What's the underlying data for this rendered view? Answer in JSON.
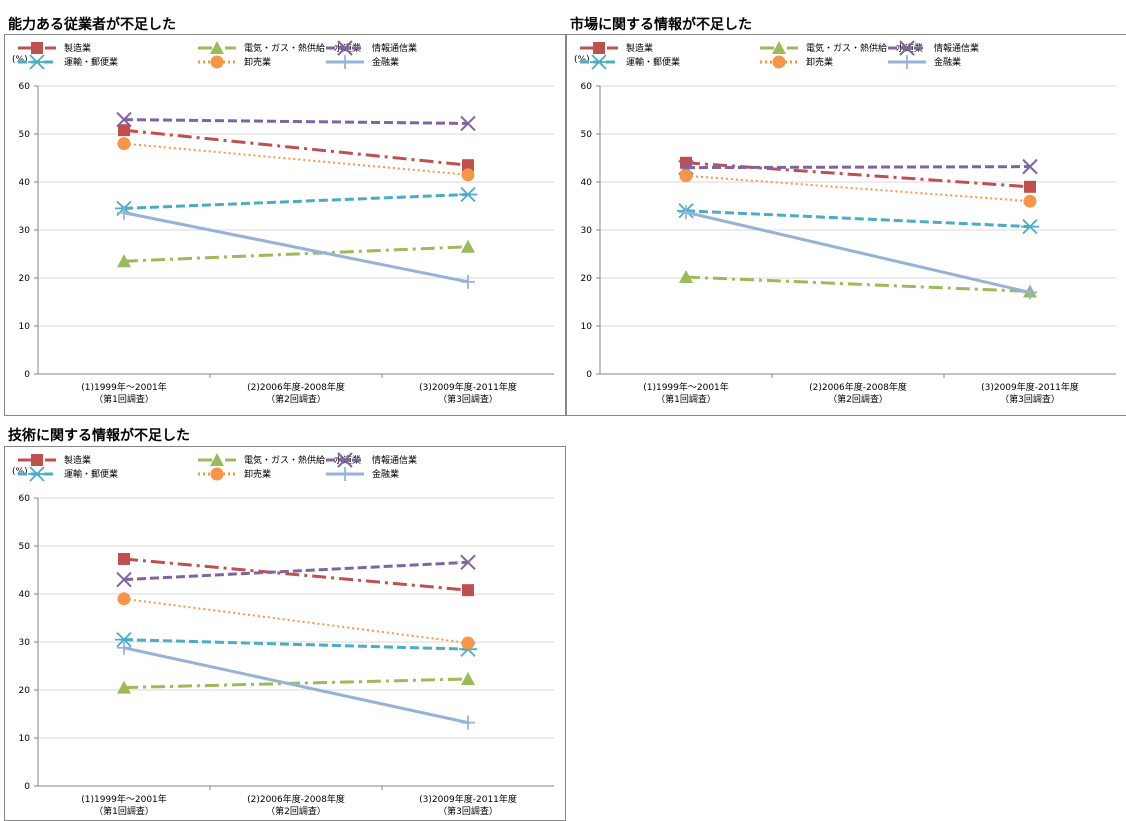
{
  "panels": [
    {
      "title": "能力ある従業者が不足した"
    },
    {
      "title": "市場に関する情報が不足した"
    },
    {
      "title": "技術に関する情報が不足した"
    }
  ],
  "colors": {
    "manufacturing": "#c0504d",
    "utilities": "#9bbb59",
    "infocomm": "#8064a2",
    "transport": "#4bacc6",
    "wholesale": "#f79646",
    "finance": "#95b3d7"
  },
  "chart_data": [
    {
      "type": "line",
      "title": "能力ある従業者が不足した",
      "ylabel": "(%)",
      "ylim": [
        0,
        60
      ],
      "yticks": [
        "0",
        "10",
        "20",
        "30",
        "40",
        "50",
        "60"
      ],
      "categories": [
        [
          "(1)1999年～2001年",
          "（第1回調査）"
        ],
        [
          "(2)2006年度-2008年度",
          "（第2回調査）"
        ],
        [
          "(3)2009年度-2011年度",
          "（第3回調査）"
        ]
      ],
      "x": [
        0,
        2
      ],
      "legend_position": "top",
      "series": [
        {
          "name": "製造業",
          "values": [
            50.8,
            43.5
          ],
          "color_key": "manufacturing",
          "marker": "square",
          "dash": "dashdot"
        },
        {
          "name": "電気・ガス・熱供給・水道業",
          "values": [
            23.5,
            26.5
          ],
          "color_key": "utilities",
          "marker": "triangle",
          "dash": "dashdot"
        },
        {
          "name": "情報通信業",
          "values": [
            53,
            52.2
          ],
          "color_key": "infocomm",
          "marker": "x",
          "dash": "dash"
        },
        {
          "name": "運輸・郵便業",
          "values": [
            34.5,
            37.4
          ],
          "color_key": "transport",
          "marker": "asterisk",
          "dash": "dash"
        },
        {
          "name": "卸売業",
          "values": [
            48,
            41.5
          ],
          "color_key": "wholesale",
          "marker": "circle",
          "dash": "dot"
        },
        {
          "name": "金融業",
          "values": [
            33.6,
            19.2
          ],
          "color_key": "finance",
          "marker": "plus",
          "dash": "solid"
        }
      ]
    },
    {
      "type": "line",
      "title": "市場に関する情報が不足した",
      "ylabel": "(%)",
      "ylim": [
        0,
        60
      ],
      "yticks": [
        "0",
        "10",
        "20",
        "30",
        "40",
        "50",
        "60"
      ],
      "categories": [
        [
          "(1)1999年～2001年",
          "（第1回調査）"
        ],
        [
          "(2)2006年度-2008年度",
          "（第2回調査）"
        ],
        [
          "(3)2009年度-2011年度",
          "（第3回調査）"
        ]
      ],
      "x": [
        0,
        2
      ],
      "legend_position": "top",
      "series": [
        {
          "name": "製造業",
          "values": [
            44,
            39
          ],
          "color_key": "manufacturing",
          "marker": "square",
          "dash": "dashdot"
        },
        {
          "name": "電気・ガス・熱供給・水道業",
          "values": [
            20.2,
            17.2
          ],
          "color_key": "utilities",
          "marker": "triangle",
          "dash": "dashdot"
        },
        {
          "name": "情報通信業",
          "values": [
            43,
            43.2
          ],
          "color_key": "infocomm",
          "marker": "x",
          "dash": "dash"
        },
        {
          "name": "運輸・郵便業",
          "values": [
            34,
            30.7
          ],
          "color_key": "transport",
          "marker": "asterisk",
          "dash": "dash"
        },
        {
          "name": "卸売業",
          "values": [
            41.3,
            36
          ],
          "color_key": "wholesale",
          "marker": "circle",
          "dash": "dot"
        },
        {
          "name": "金融業",
          "values": [
            33.7,
            17
          ],
          "color_key": "finance",
          "marker": "plus",
          "dash": "solid"
        }
      ]
    },
    {
      "type": "line",
      "title": "技術に関する情報が不足した",
      "ylabel": "(%)",
      "ylim": [
        0,
        60
      ],
      "yticks": [
        "0",
        "10",
        "20",
        "30",
        "40",
        "50",
        "60"
      ],
      "categories": [
        [
          "(1)1999年～2001年",
          "（第1回調査）"
        ],
        [
          "(2)2006年度-2008年度",
          "（第2回調査）"
        ],
        [
          "(3)2009年度-2011年度",
          "（第3回調査）"
        ]
      ],
      "x": [
        0,
        2
      ],
      "legend_position": "top",
      "series": [
        {
          "name": "製造業",
          "values": [
            47.3,
            40.8
          ],
          "color_key": "manufacturing",
          "marker": "square",
          "dash": "dashdot"
        },
        {
          "name": "電気・ガス・熱供給・水道業",
          "values": [
            20.5,
            22.3
          ],
          "color_key": "utilities",
          "marker": "triangle",
          "dash": "dashdot"
        },
        {
          "name": "情報通信業",
          "values": [
            43,
            46.6
          ],
          "color_key": "infocomm",
          "marker": "x",
          "dash": "dash"
        },
        {
          "name": "運輸・郵便業",
          "values": [
            30.5,
            28.5
          ],
          "color_key": "transport",
          "marker": "asterisk",
          "dash": "dash"
        },
        {
          "name": "卸売業",
          "values": [
            39,
            29.8
          ],
          "color_key": "wholesale",
          "marker": "circle",
          "dash": "dot"
        },
        {
          "name": "金融業",
          "values": [
            28.8,
            13.2
          ],
          "color_key": "finance",
          "marker": "plus",
          "dash": "solid"
        }
      ]
    }
  ]
}
